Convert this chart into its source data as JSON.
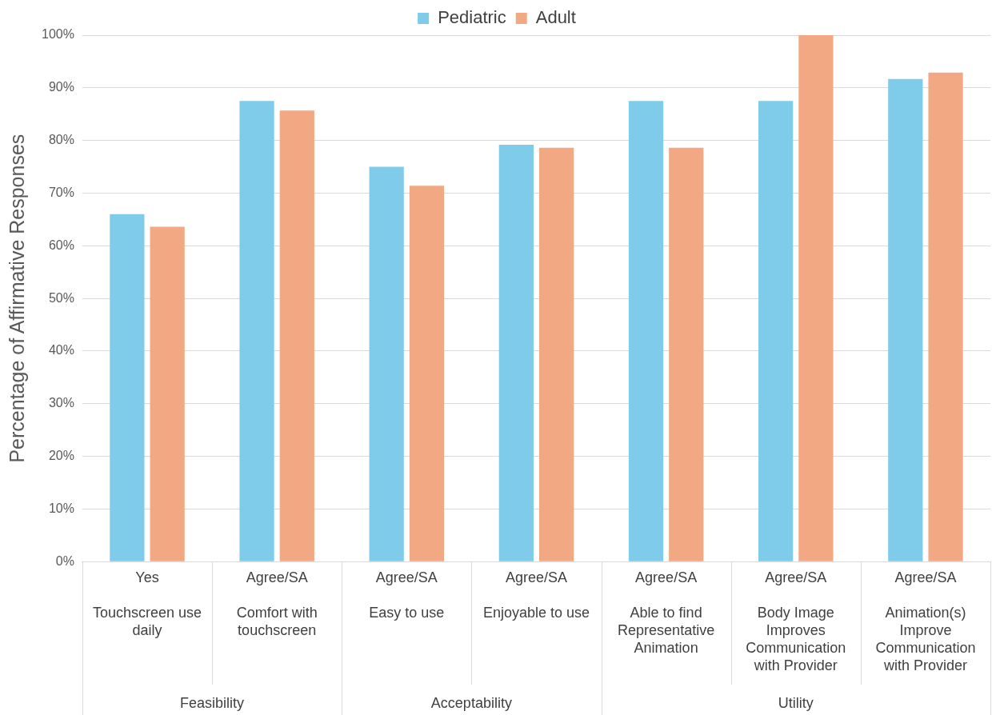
{
  "chart_data": {
    "type": "bar",
    "ylabel": "Percentage of Affirmative Responses",
    "categories": [
      "Yes\nTouchscreen use\ndaily",
      "Agree/SA\nComfort with\ntouchscreen",
      "Agree/SA\nEasy to use",
      "Agree/SA\nEnjoyable to use",
      "Agree/SA\nAble to find\nRepresentative\nAnimation",
      "Agree/SA\nBody Image\nImproves\nCommunication\nwith Provider",
      "Agree/SA\nAnimation(s)\nImprove\nCommunication\nwith Provider"
    ],
    "series": [
      {
        "name": "Pediatric",
        "color": "#7fcbea",
        "values": [
          66,
          87.5,
          75,
          79.2,
          87.5,
          87.5,
          91.7
        ]
      },
      {
        "name": "Adult",
        "color": "#f2a983",
        "values": [
          63.6,
          85.7,
          71.4,
          78.6,
          78.6,
          100,
          92.9
        ]
      }
    ],
    "ylim": [
      0,
      100
    ],
    "yticks": [
      {
        "value": 0,
        "label": "0%"
      },
      {
        "value": 10,
        "label": "10%"
      },
      {
        "value": 20,
        "label": "20%"
      },
      {
        "value": 30,
        "label": "30%"
      },
      {
        "value": 40,
        "label": "40%"
      },
      {
        "value": 50,
        "label": "50%"
      },
      {
        "value": 60,
        "label": "60%"
      },
      {
        "value": 70,
        "label": "70%"
      },
      {
        "value": 80,
        "label": "80%"
      },
      {
        "value": 90,
        "label": "90%"
      },
      {
        "value": 100,
        "label": "100%"
      }
    ],
    "annotations": [
      "Feasibility",
      "Acceptability",
      "Utility"
    ],
    "grid": "y",
    "legend": "top"
  }
}
